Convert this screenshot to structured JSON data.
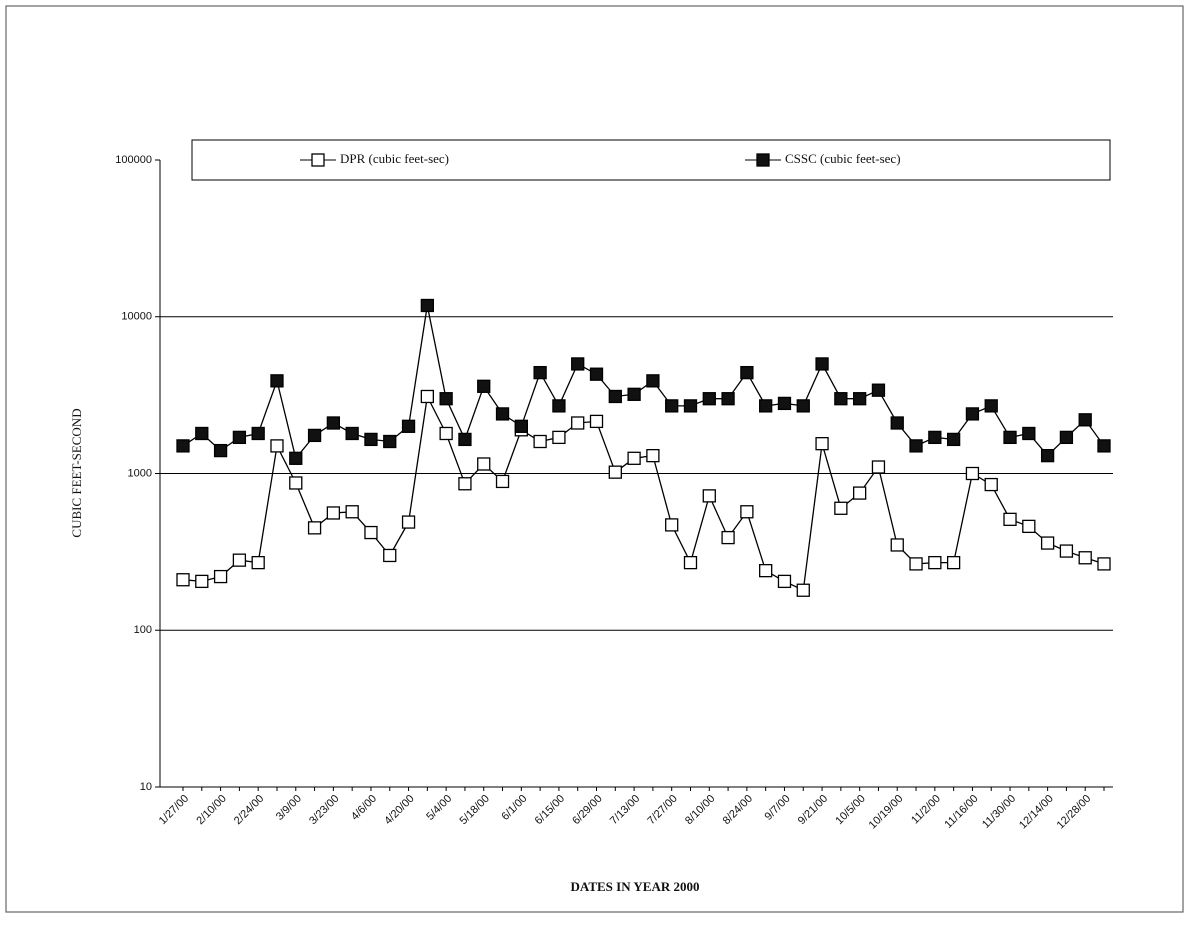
{
  "chart_data": {
    "type": "line",
    "log_scale": true,
    "grid": true,
    "legend": "top",
    "x_label": "DATES IN YEAR 2000",
    "y_label": "CUBIC FEET-SECOND",
    "categories": [
      "1/27/00",
      null,
      "2/10/00",
      null,
      "2/24/00",
      null,
      "3/9/00",
      null,
      "3/23/00",
      null,
      "4/6/00",
      null,
      "4/20/00",
      null,
      "5/4/00",
      null,
      "5/18/00",
      null,
      "6/1/00",
      null,
      "6/15/00",
      null,
      "6/29/00",
      null,
      "7/13/00",
      null,
      "7/27/00",
      null,
      "8/10/00",
      null,
      "8/24/00",
      null,
      "9/7/00",
      null,
      "9/21/00",
      null,
      "10/5/00",
      null,
      "10/19/00",
      null,
      "11/2/00",
      null,
      "11/16/00",
      null,
      "11/30/00",
      null,
      "12/14/00",
      null,
      "12/28/00",
      null
    ],
    "series": [
      {
        "name": "DPR (cubic feet-sec)",
        "color": "#000000",
        "marker_fill": "#ffffff",
        "values": [
          210,
          205,
          220,
          280,
          270,
          1500,
          870,
          450,
          560,
          570,
          420,
          300,
          490,
          3100,
          1800,
          860,
          1150,
          890,
          1900,
          1600,
          1700,
          2100,
          2150,
          1020,
          1250,
          1300,
          470,
          270,
          720,
          390,
          570,
          240,
          205,
          180,
          1550,
          600,
          750,
          1100,
          350,
          265,
          270,
          270,
          1000,
          850,
          510,
          460,
          360,
          320,
          290,
          265
        ]
      },
      {
        "name": "CSSC (cubic feet-sec)",
        "color": "#000000",
        "marker_fill": "#111111",
        "values": [
          1500,
          1800,
          1400,
          1700,
          1800,
          3900,
          1250,
          1750,
          2100,
          1800,
          1650,
          1600,
          2000,
          11800,
          3000,
          1650,
          3600,
          2400,
          2000,
          4400,
          2700,
          5000,
          4300,
          3100,
          3200,
          3900,
          2700,
          2700,
          3000,
          3000,
          4400,
          2700,
          2800,
          2700,
          5000,
          3000,
          3000,
          3400,
          2100,
          1500,
          1700,
          1650,
          2400,
          2700,
          1700,
          1800,
          1300,
          1700,
          2200,
          1500
        ]
      }
    ],
    "ylim": [
      10,
      100000
    ],
    "yticks": [
      10,
      100,
      1000,
      10000,
      100000
    ]
  }
}
